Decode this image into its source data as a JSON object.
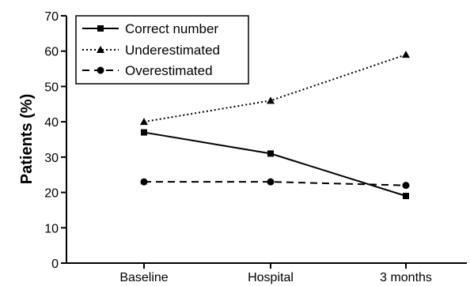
{
  "chart_data": {
    "type": "line",
    "title": "",
    "xlabel": "",
    "ylabel": "Patients (%)",
    "categories": [
      "Baseline",
      "Hospital",
      "3 months"
    ],
    "ylim": [
      0,
      70
    ],
    "yticks": [
      0,
      10,
      20,
      30,
      40,
      50,
      60,
      70
    ],
    "grid": false,
    "legend_position": "top-left",
    "series": [
      {
        "name": "Correct number",
        "values": [
          37,
          31,
          19
        ],
        "line_style": "solid",
        "marker": "square",
        "color": "#000000"
      },
      {
        "name": "Underestimated",
        "values": [
          40,
          46,
          59
        ],
        "line_style": "dotted",
        "marker": "triangle",
        "color": "#000000"
      },
      {
        "name": "Overestimated",
        "values": [
          23,
          23,
          22
        ],
        "line_style": "dashed",
        "marker": "circle",
        "color": "#000000"
      }
    ]
  }
}
